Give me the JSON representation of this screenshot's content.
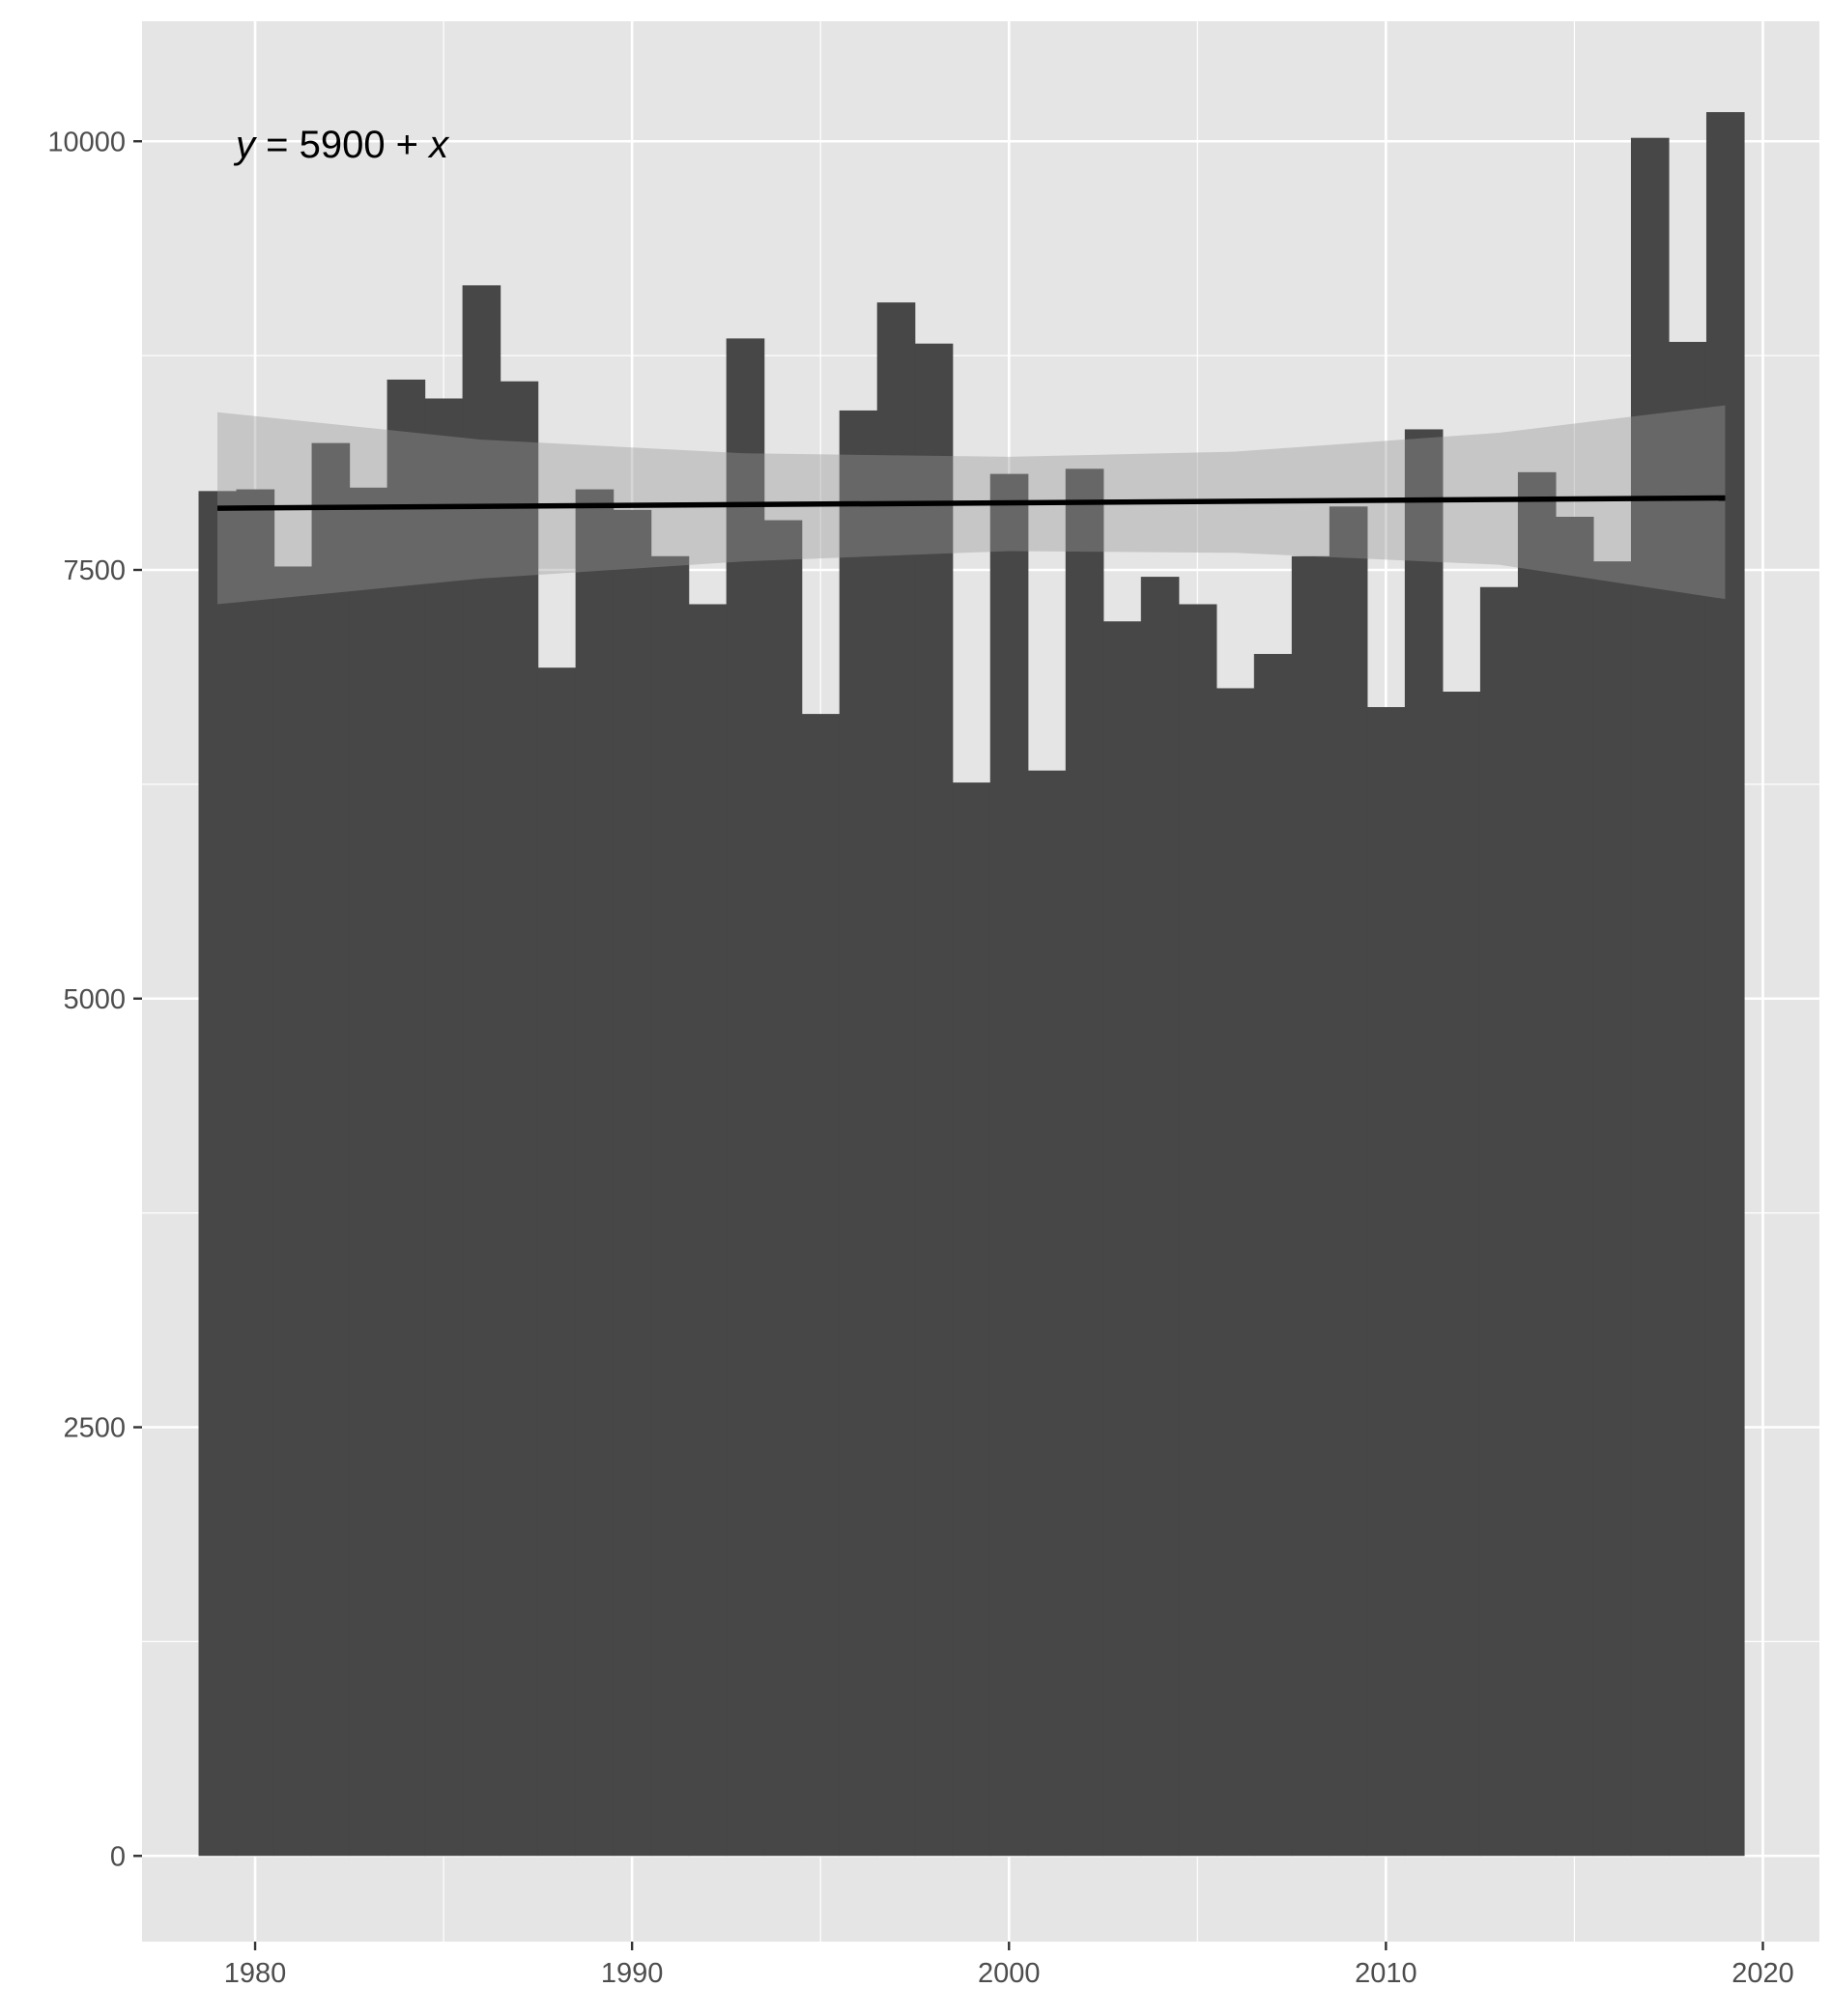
{
  "chart_data": {
    "type": "bar",
    "title": "",
    "xlabel": "",
    "ylabel": "",
    "xlim": [
      1977,
      2021.5
    ],
    "ylim": [
      -500,
      10700
    ],
    "x_ticks": [
      1980,
      1990,
      2000,
      2010,
      2020
    ],
    "x_tick_labels": [
      "1980",
      "1990",
      "2000",
      "2010",
      "2020"
    ],
    "y_ticks": [
      0,
      2500,
      5000,
      7500,
      10000
    ],
    "y_tick_labels": [
      "0",
      "2500",
      "5000",
      "7500",
      "10000"
    ],
    "minor_grid": true,
    "bar_color": "#474747",
    "panel_background": "#e5e5e5",
    "grid_color": "#ffffff",
    "categories": [
      1979,
      1980,
      1981,
      1982,
      1983,
      1984,
      1985,
      1986,
      1987,
      1988,
      1989,
      1990,
      1991,
      1992,
      1993,
      1994,
      1995,
      1996,
      1997,
      1998,
      1999,
      2000,
      2001,
      2002,
      2003,
      2004,
      2005,
      2006,
      2007,
      2008,
      2009,
      2010,
      2011,
      2012,
      2013,
      2014,
      2015,
      2016,
      2017,
      2018,
      2019
    ],
    "values": [
      7960,
      7970,
      7520,
      8240,
      7980,
      8610,
      8500,
      9160,
      8600,
      6930,
      7970,
      7850,
      7580,
      7300,
      8850,
      7790,
      6660,
      8430,
      9060,
      8820,
      6260,
      8060,
      6330,
      8090,
      7200,
      7460,
      7300,
      6810,
      7010,
      7580,
      7870,
      6700,
      8320,
      6790,
      7400,
      8070,
      7810,
      7550,
      10020,
      8830,
      10170
    ],
    "trend": {
      "equation_prefix": "y",
      "equation_middle": " = 5900 + ",
      "equation_suffix": "x",
      "x_start": 1979,
      "x_end": 2019,
      "y_start": 7860,
      "y_end": 7920,
      "band_lower": [
        7300,
        7450,
        7550,
        7610,
        7600,
        7530,
        7330
      ],
      "band_upper": [
        8420,
        8260,
        8180,
        8160,
        8190,
        8300,
        8460
      ],
      "band_x": [
        1979,
        1986,
        1993,
        2000,
        2006,
        2013,
        2019
      ],
      "line_color": "#000000",
      "band_color": "#999999"
    }
  }
}
